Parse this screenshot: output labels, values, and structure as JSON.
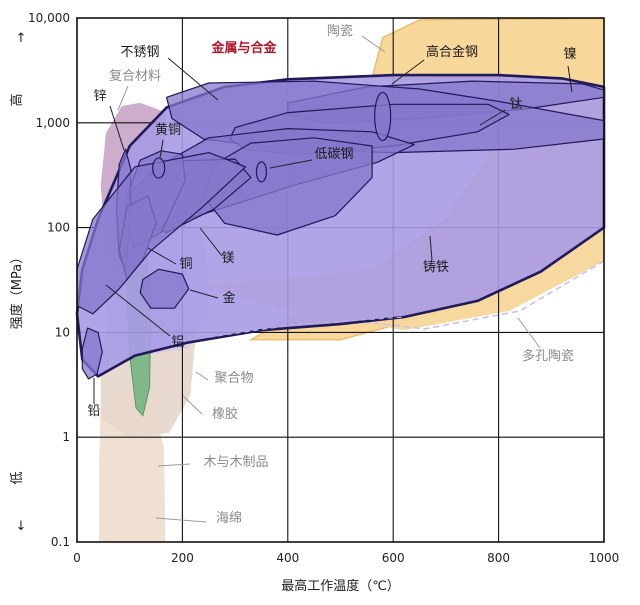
{
  "chart_data": {
    "type": "area",
    "title": "",
    "xlabel": "最高工作温度（℃）",
    "ylabel": "强度（MPa）",
    "y_high_label": "高",
    "y_low_label": "低",
    "y_arrow_up": "↑",
    "y_arrow_down": "↓",
    "x_scale": "linear",
    "y_scale": "log",
    "xlim": [
      0,
      1000
    ],
    "ylim": [
      0.1,
      10000
    ],
    "x_ticks": [
      {
        "value": 0,
        "label": "0"
      },
      {
        "value": 200,
        "label": "200"
      },
      {
        "value": 400,
        "label": "400"
      },
      {
        "value": 600,
        "label": "600"
      },
      {
        "value": 800,
        "label": "800"
      },
      {
        "value": 1000,
        "label": "1000"
      }
    ],
    "y_ticks": [
      {
        "value": 0.1,
        "label": "0.1"
      },
      {
        "value": 1,
        "label": "1"
      },
      {
        "value": 10,
        "label": "10"
      },
      {
        "value": 100,
        "label": "100"
      },
      {
        "value": 1000,
        "label": "1,000"
      },
      {
        "value": 10000,
        "label": "10,000"
      }
    ],
    "grid": true,
    "colors": {
      "metals": "#a99be6",
      "metal_edge": "#20195a",
      "sub_metal": "#8677cc",
      "ceramics": "#f7d79a",
      "ceramic_edge": "#e8b65c",
      "composites": "#c8a3c6",
      "polymers": "#d2c8e8",
      "rubber": "#e8d8cc",
      "wood": "#7fb98a",
      "foam": "#eeddcc",
      "highlight_label": "#b0172a",
      "grey_label": "#8a8a8a",
      "dark_label": "#1b1b1b"
    },
    "regions": [
      {
        "name": "金属与合金",
        "group": "family",
        "x_range": [
          0,
          1000
        ],
        "y_range": [
          3.5,
          2800
        ]
      },
      {
        "name": "陶瓷",
        "group": "family",
        "x_range": [
          500,
          1000
        ],
        "y_range": [
          9,
          10000
        ]
      },
      {
        "name": "多孔陶瓷",
        "group": "family",
        "x_range": [
          100,
          1000
        ],
        "y_range": [
          8,
          100
        ]
      },
      {
        "name": "复合材料",
        "group": "family",
        "x_range": [
          40,
          180
        ],
        "y_range": [
          20,
          1500
        ]
      },
      {
        "name": "聚合物",
        "group": "family",
        "x_range": [
          50,
          250
        ],
        "y_range": [
          8,
          200
        ]
      },
      {
        "name": "橡胶",
        "group": "family",
        "x_range": [
          60,
          220
        ],
        "y_range": [
          1,
          30
        ]
      },
      {
        "name": "木与木制品",
        "group": "family",
        "x_range": [
          90,
          150
        ],
        "y_range": [
          1.5,
          100
        ]
      },
      {
        "name": "海绵",
        "group": "family",
        "x_range": [
          40,
          170
        ],
        "y_range": [
          0.1,
          3
        ]
      },
      {
        "name": "不锈钢",
        "group": "metal",
        "x_range": [
          170,
          1000
        ],
        "y_range": [
          300,
          2500
        ]
      },
      {
        "name": "高合金钢",
        "group": "metal",
        "x_range": [
          550,
          620
        ],
        "y_range": [
          500,
          3000
        ]
      },
      {
        "name": "镍",
        "group": "metal",
        "x_range": [
          400,
          1000
        ],
        "y_range": [
          900,
          2500
        ]
      },
      {
        "name": "钛",
        "group": "metal",
        "x_range": [
          300,
          800
        ],
        "y_range": [
          400,
          1500
        ]
      },
      {
        "name": "低碳钢",
        "group": "metal",
        "x_range": [
          130,
          600
        ],
        "y_range": [
          80,
          900
        ]
      },
      {
        "name": "铸铁",
        "group": "metal",
        "x_range": [
          220,
          560
        ],
        "y_range": [
          80,
          700
        ]
      },
      {
        "name": "锌",
        "group": "metal",
        "x_range": [
          70,
          100
        ],
        "y_range": [
          30,
          600
        ]
      },
      {
        "name": "黄铜",
        "group": "metal",
        "x_range": [
          80,
          200
        ],
        "y_range": [
          60,
          550
        ]
      },
      {
        "name": "铜",
        "group": "metal",
        "x_range": [
          80,
          150
        ],
        "y_range": [
          30,
          200
        ]
      },
      {
        "name": "镁",
        "group": "metal",
        "x_range": [
          100,
          320
        ],
        "y_range": [
          80,
          500
        ]
      },
      {
        "name": "金",
        "group": "metal",
        "x_range": [
          120,
          200
        ],
        "y_range": [
          15,
          40
        ]
      },
      {
        "name": "铝",
        "group": "metal",
        "x_range": [
          0,
          300
        ],
        "y_range": [
          15,
          500
        ]
      },
      {
        "name": "铅",
        "group": "metal",
        "x_range": [
          10,
          50
        ],
        "y_range": [
          3.5,
          11
        ]
      }
    ],
    "labels": [
      {
        "text": "陶瓷",
        "color": "grey"
      },
      {
        "text": "高合金钢",
        "color": "dark"
      },
      {
        "text": "镍",
        "color": "dark"
      },
      {
        "text": "不锈钢",
        "color": "dark"
      },
      {
        "text": "金属与合金",
        "color": "highlight"
      },
      {
        "text": "复合材料",
        "color": "grey"
      },
      {
        "text": "锌",
        "color": "dark"
      },
      {
        "text": "黄铜",
        "color": "dark"
      },
      {
        "text": "钛",
        "color": "dark"
      },
      {
        "text": "低碳钢",
        "color": "dark"
      },
      {
        "text": "铜",
        "color": "dark"
      },
      {
        "text": "镁",
        "color": "dark"
      },
      {
        "text": "金",
        "color": "dark"
      },
      {
        "text": "铸铁",
        "color": "dark"
      },
      {
        "text": "铝",
        "color": "dark"
      },
      {
        "text": "多孔陶瓷",
        "color": "grey"
      },
      {
        "text": "聚合物",
        "color": "grey"
      },
      {
        "text": "铅",
        "color": "dark"
      },
      {
        "text": "橡胶",
        "color": "grey"
      },
      {
        "text": "木与木制品",
        "color": "grey"
      },
      {
        "text": "海绵",
        "color": "grey"
      }
    ]
  }
}
